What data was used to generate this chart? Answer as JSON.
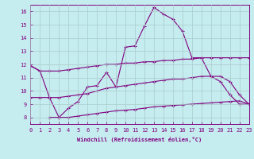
{
  "xlabel": "Windchill (Refroidissement éolien,°C)",
  "background_color": "#c5ecee",
  "line_color": "#800080",
  "grid_color": "#aacccc",
  "xlim": [
    0,
    23
  ],
  "ylim": [
    7.5,
    16.5
  ],
  "yticks": [
    8,
    9,
    10,
    11,
    12,
    13,
    14,
    15,
    16
  ],
  "xticks": [
    0,
    1,
    2,
    3,
    4,
    5,
    6,
    7,
    8,
    9,
    10,
    11,
    12,
    13,
    14,
    15,
    16,
    17,
    18,
    19,
    20,
    21,
    22,
    23
  ],
  "series": [
    {
      "x": [
        0,
        1,
        2,
        3,
        4,
        5,
        6,
        7,
        8,
        9,
        10,
        11,
        12,
        13,
        14,
        15,
        16,
        17,
        18,
        19,
        20,
        21,
        22,
        23
      ],
      "y": [
        11.9,
        11.5,
        9.5,
        8.0,
        8.7,
        9.2,
        10.3,
        10.4,
        11.4,
        10.3,
        13.3,
        13.4,
        14.9,
        16.3,
        15.8,
        15.4,
        14.5,
        12.5,
        12.5,
        11.1,
        10.7,
        9.7,
        9.0,
        9.0
      ]
    },
    {
      "x": [
        0,
        1,
        2,
        3,
        4,
        5,
        6,
        7,
        8,
        9,
        10,
        11,
        12,
        13,
        14,
        15,
        16,
        17,
        18,
        19,
        20,
        21,
        22,
        23
      ],
      "y": [
        11.9,
        11.5,
        11.5,
        11.5,
        11.6,
        11.7,
        11.8,
        11.9,
        12.0,
        12.0,
        12.1,
        12.1,
        12.2,
        12.2,
        12.3,
        12.3,
        12.4,
        12.4,
        12.5,
        12.5,
        12.5,
        12.5,
        12.5,
        12.5
      ]
    },
    {
      "x": [
        0,
        1,
        2,
        3,
        4,
        5,
        6,
        7,
        8,
        9,
        10,
        11,
        12,
        13,
        14,
        15,
        16,
        17,
        18,
        19,
        20,
        21,
        22,
        23
      ],
      "y": [
        9.5,
        9.5,
        9.5,
        9.5,
        9.6,
        9.7,
        9.8,
        10.0,
        10.2,
        10.3,
        10.4,
        10.5,
        10.6,
        10.7,
        10.8,
        10.9,
        10.9,
        11.0,
        11.1,
        11.1,
        11.1,
        10.7,
        9.7,
        9.0
      ]
    },
    {
      "x": [
        2,
        3,
        4,
        5,
        6,
        7,
        8,
        9,
        10,
        11,
        12,
        13,
        14,
        15,
        16,
        17,
        18,
        19,
        20,
        21,
        22,
        23
      ],
      "y": [
        8.0,
        8.0,
        8.0,
        8.1,
        8.2,
        8.3,
        8.4,
        8.5,
        8.55,
        8.6,
        8.7,
        8.8,
        8.85,
        8.9,
        8.95,
        9.0,
        9.05,
        9.1,
        9.15,
        9.2,
        9.25,
        9.0
      ]
    }
  ]
}
